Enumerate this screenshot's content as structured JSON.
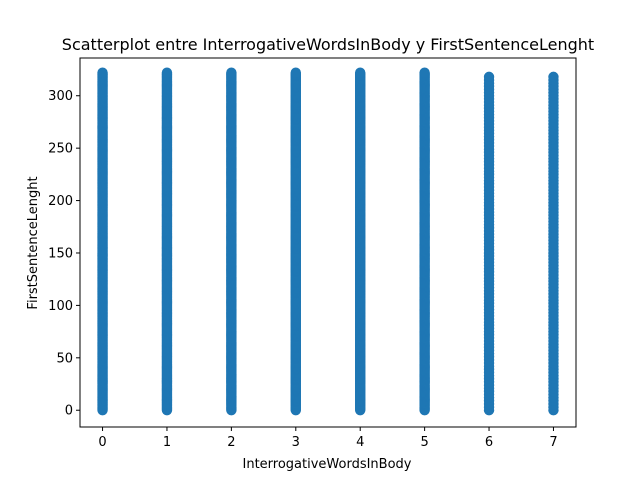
{
  "chart_data": {
    "type": "scatter",
    "title": "Scatterplot entre InterrogativeWordsInBody y FirstSentenceLenght",
    "xlabel": "InterrogativeWordsInBody",
    "ylabel": "FirstSentenceLenght",
    "xlim": [
      -0.35,
      7.35
    ],
    "ylim": [
      -16,
      336
    ],
    "x_ticks": [
      0,
      1,
      2,
      3,
      4,
      5,
      6,
      7
    ],
    "y_ticks": [
      0,
      50,
      100,
      150,
      200,
      250,
      300
    ],
    "grid": false,
    "legend": "none",
    "color": "#1f77b4",
    "series": [
      {
        "points": [
          {
            "x": 0,
            "y_min": 0,
            "y_max": 322,
            "dense": true
          },
          {
            "x": 1,
            "y_min": 0,
            "y_max": 322,
            "dense": true
          },
          {
            "x": 2,
            "y_min": 0,
            "y_max": 322,
            "dense": true
          },
          {
            "x": 3,
            "y_min": 0,
            "y_max": 322,
            "dense": true
          },
          {
            "x": 4,
            "y_min": 0,
            "y_max": 322,
            "dense": true
          },
          {
            "x": 5,
            "y_min": 0,
            "y_max": 322,
            "dense": true
          },
          {
            "x": 6,
            "y_min": 0,
            "y_max": 320,
            "dense": false
          },
          {
            "x": 7,
            "y_min": 0,
            "y_max": 320,
            "dense": false
          }
        ]
      }
    ]
  }
}
